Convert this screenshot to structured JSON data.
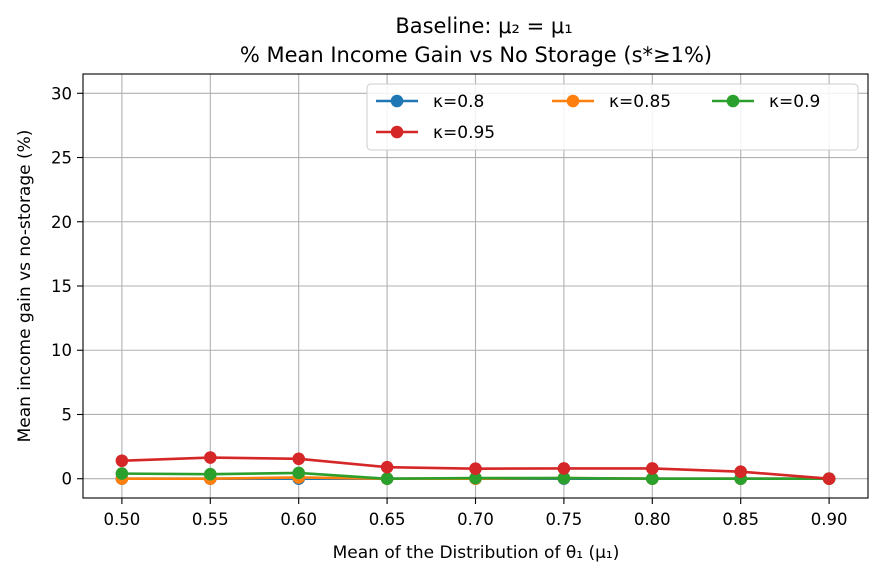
{
  "chart_data": {
    "type": "line",
    "title": "Baseline: μ₂ = μ₁",
    "subtitle": "% Mean Income Gain vs No Storage (s*≥1%)",
    "xlabel": "Mean of the Distribution of θ₁ (μ₁)",
    "ylabel": "Mean income gain vs no-storage (%)",
    "x": [
      0.5,
      0.55,
      0.6,
      0.65,
      0.7,
      0.75,
      0.8,
      0.85,
      0.9
    ],
    "x_tick_labels": [
      "0.50",
      "0.55",
      "0.60",
      "0.65",
      "0.70",
      "0.75",
      "0.80",
      "0.85",
      "0.90"
    ],
    "y_ticks": [
      0,
      5,
      10,
      15,
      20,
      25,
      30
    ],
    "y_tick_labels": [
      "0",
      "5",
      "10",
      "15",
      "20",
      "25",
      "30"
    ],
    "xlim": [
      0.478,
      0.922
    ],
    "ylim": [
      -1.5,
      31.5
    ],
    "grid": true,
    "legend_position": "top-right",
    "legend_columns": 3,
    "series": [
      {
        "name": "κ=0.8",
        "color": "#1f77b4",
        "values": [
          0,
          0,
          0,
          0,
          0,
          0,
          0,
          0,
          0
        ]
      },
      {
        "name": "κ=0.85",
        "color": "#ff7f0e",
        "values": [
          0,
          0,
          0.1,
          0,
          0,
          0.05,
          0,
          0,
          0
        ]
      },
      {
        "name": "κ=0.9",
        "color": "#2ca02c",
        "values": [
          0.4,
          0.35,
          0.45,
          0,
          0.05,
          0.05,
          0,
          0,
          0
        ]
      },
      {
        "name": "κ=0.95",
        "color": "#d62728",
        "values": [
          1.4,
          1.65,
          1.55,
          0.9,
          0.78,
          0.8,
          0.8,
          0.55,
          0
        ]
      }
    ]
  }
}
